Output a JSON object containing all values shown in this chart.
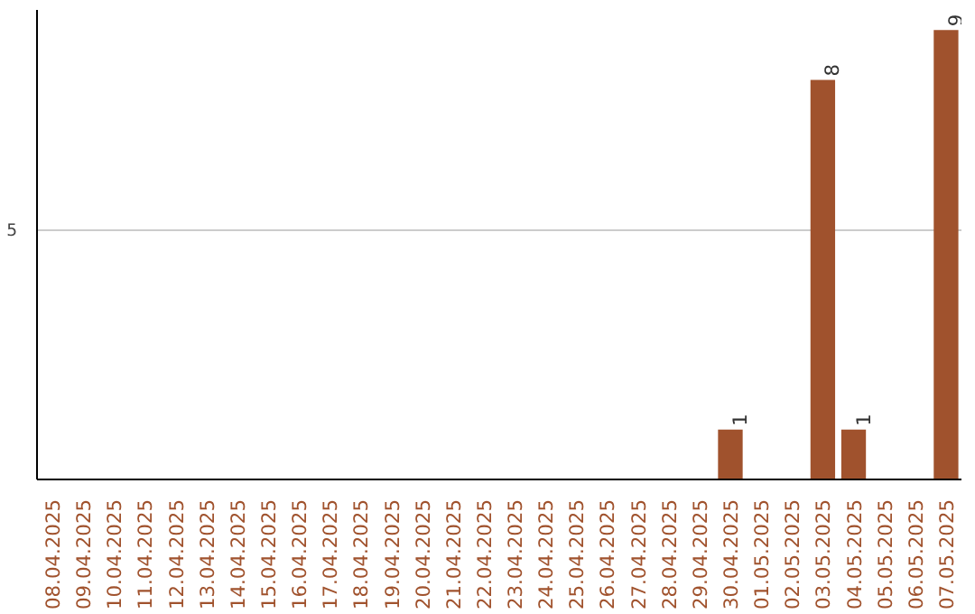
{
  "chart_data": {
    "type": "bar",
    "categories": [
      "08.04.2025",
      "09.04.2025",
      "10.04.2025",
      "11.04.2025",
      "12.04.2025",
      "13.04.2025",
      "14.04.2025",
      "15.04.2025",
      "16.04.2025",
      "17.04.2025",
      "18.04.2025",
      "19.04.2025",
      "20.04.2025",
      "21.04.2025",
      "22.04.2025",
      "23.04.2025",
      "24.04.2025",
      "25.04.2025",
      "26.04.2025",
      "27.04.2025",
      "28.04.2025",
      "29.04.2025",
      "30.04.2025",
      "01.05.2025",
      "02.05.2025",
      "03.05.2025",
      "04.05.2025",
      "05.05.2025",
      "06.05.2025",
      "07.05.2025"
    ],
    "values": [
      null,
      null,
      null,
      null,
      null,
      null,
      null,
      null,
      null,
      null,
      null,
      null,
      null,
      null,
      null,
      null,
      null,
      null,
      null,
      null,
      null,
      null,
      1,
      null,
      null,
      8,
      1,
      null,
      null,
      9
    ],
    "value_labels": [
      null,
      null,
      null,
      null,
      null,
      null,
      null,
      null,
      null,
      null,
      null,
      null,
      null,
      null,
      null,
      null,
      null,
      null,
      null,
      null,
      null,
      null,
      "1",
      null,
      null,
      "8",
      "1",
      null,
      null,
      "9"
    ],
    "color": "#a0522d",
    "ylim": [
      0,
      9.4
    ],
    "yticks": [
      {
        "value": 0,
        "label": null
      },
      5
    ],
    "grid": "y"
  }
}
